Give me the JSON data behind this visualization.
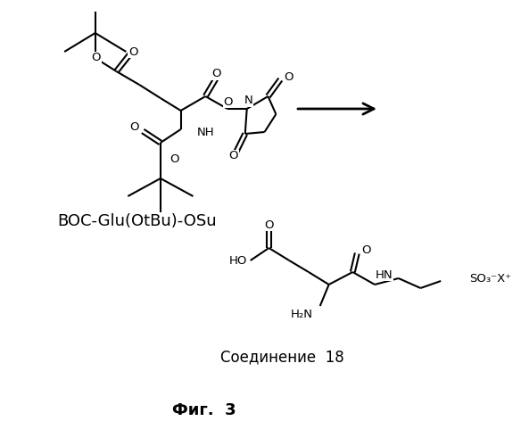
{
  "background_color": "#ffffff",
  "label_boc": "BOC-Glu(OtBu)-OSu",
  "label_compound": "Соединение  18",
  "label_fig": "Фиг.  3",
  "label_boc_fontsize": 13,
  "label_compound_fontsize": 12,
  "label_fig_fontsize": 13,
  "figsize": [
    5.84,
    5.0
  ],
  "dpi": 100
}
